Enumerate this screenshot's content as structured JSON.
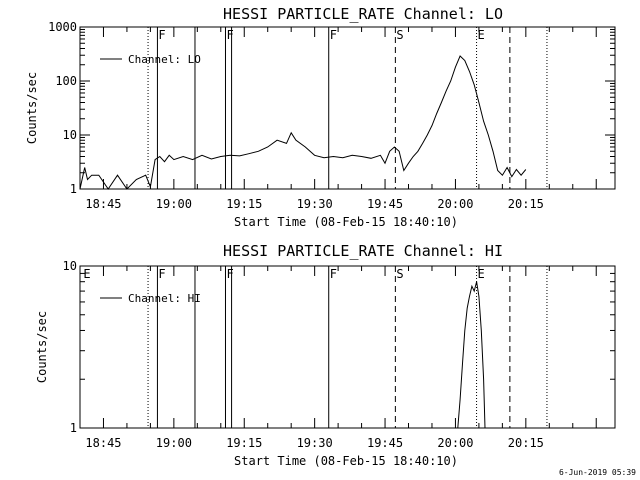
{
  "chart_data": [
    {
      "type": "line",
      "title": "HESSI PARTICLE_RATE Channel: LO",
      "xlabel": "Start Time (08-Feb-15 18:40:10)",
      "ylabel": "Counts/sec",
      "yscale": "log",
      "ylim": [
        1,
        1000
      ],
      "y_tick_labels": [
        "1",
        "10",
        "100",
        "1000"
      ],
      "x_range_min": [
        0,
        114
      ],
      "x_ticks_min": [
        5,
        20,
        35,
        50,
        65,
        80,
        95
      ],
      "x_tick_labels": [
        "18:45",
        "19:00",
        "19:15",
        "19:30",
        "19:45",
        "20:00",
        "20:15"
      ],
      "legend": {
        "label": "Channel: LO",
        "placement": "top-left"
      },
      "series": [
        {
          "name": "Channel: LO",
          "x": [
            0,
            1,
            1.6,
            2.5,
            4,
            6,
            8,
            10,
            12,
            14,
            15,
            16,
            17,
            18,
            19,
            20,
            22,
            24,
            26,
            28,
            30,
            32,
            34,
            36,
            38,
            40,
            42,
            44,
            45,
            46,
            48,
            50,
            52,
            54,
            56,
            58,
            60,
            62,
            64,
            65,
            66,
            67,
            68,
            69,
            70,
            71,
            72,
            73,
            74,
            75,
            76,
            77,
            78,
            79,
            80,
            81,
            82,
            83,
            84,
            85,
            86,
            87,
            88,
            89,
            90,
            91,
            92,
            93,
            94,
            95
          ],
          "y": [
            1,
            2.5,
            1.5,
            1.8,
            1.8,
            1,
            1.8,
            1,
            1.5,
            1.8,
            1.1,
            3.5,
            4,
            3.2,
            4.2,
            3.5,
            4,
            3.5,
            4.2,
            3.6,
            4,
            4.2,
            4.1,
            4.5,
            5,
            6,
            8,
            7,
            11,
            8,
            6,
            4.2,
            3.8,
            4,
            3.8,
            4.2,
            4,
            3.7,
            4.2,
            3,
            5,
            6,
            5,
            2.2,
            3,
            4,
            5,
            7,
            10,
            15,
            25,
            40,
            65,
            100,
            180,
            290,
            240,
            150,
            85,
            40,
            18,
            10,
            5,
            2.2,
            1.8,
            2.5,
            1.7,
            2.3,
            1.8,
            2.3
          ]
        }
      ],
      "annotations": [
        {
          "text": "F",
          "x_min": 16.5,
          "style": "solid"
        },
        {
          "text": "",
          "x_min": 14.5,
          "style": "dotted"
        },
        {
          "text": "",
          "x_min": 24.5,
          "style": "solid"
        },
        {
          "text": "F",
          "x_min": 31,
          "style": "solid"
        },
        {
          "text": "",
          "x_min": 32.3,
          "style": "solid"
        },
        {
          "text": "F",
          "x_min": 53,
          "style": "solid"
        },
        {
          "text": "S",
          "x_min": 67.2,
          "style": "dashed"
        },
        {
          "text": "E",
          "x_min": 84.5,
          "style": "dotted"
        },
        {
          "text": "",
          "x_min": 91.6,
          "style": "dashed"
        },
        {
          "text": "",
          "x_min": 99.5,
          "style": "dotted"
        }
      ]
    },
    {
      "type": "line",
      "title": "HESSI PARTICLE_RATE Channel: HI",
      "xlabel": "Start Time (08-Feb-15 18:40:10)",
      "ylabel": "Counts/sec",
      "yscale": "log",
      "ylim": [
        1,
        10
      ],
      "y_tick_labels": [
        "1",
        "10"
      ],
      "x_range_min": [
        0,
        114
      ],
      "x_ticks_min": [
        5,
        20,
        35,
        50,
        65,
        80,
        95
      ],
      "x_tick_labels": [
        "18:45",
        "19:00",
        "19:15",
        "19:30",
        "19:45",
        "20:00",
        "20:15"
      ],
      "legend": {
        "label": "Channel: HI",
        "placement": "top-left"
      },
      "series": [
        {
          "name": "Channel: HI",
          "x": [
            80.5,
            81,
            81.5,
            82,
            82.5,
            83,
            83.5,
            84,
            84.5,
            85,
            85.5,
            86,
            86.3
          ],
          "y": [
            1,
            1.5,
            2.5,
            4,
            5.5,
            6.5,
            7.5,
            7,
            8,
            6.5,
            4,
            2,
            1
          ]
        }
      ],
      "annotations": [
        {
          "text": "E",
          "x_min": 0.5,
          "style": "none"
        },
        {
          "text": "",
          "x_min": 14.5,
          "style": "dotted"
        },
        {
          "text": "F",
          "x_min": 16.5,
          "style": "solid"
        },
        {
          "text": "",
          "x_min": 24.5,
          "style": "solid"
        },
        {
          "text": "F",
          "x_min": 31,
          "style": "solid"
        },
        {
          "text": "",
          "x_min": 32.3,
          "style": "solid"
        },
        {
          "text": "F",
          "x_min": 53,
          "style": "solid"
        },
        {
          "text": "S",
          "x_min": 67.2,
          "style": "dashed"
        },
        {
          "text": "E",
          "x_min": 84.5,
          "style": "dotted"
        },
        {
          "text": "",
          "x_min": 91.6,
          "style": "dashed"
        },
        {
          "text": "",
          "x_min": 99.5,
          "style": "dotted"
        }
      ]
    }
  ],
  "footer": {
    "date_stamp": "6-Jun-2019 05:39"
  }
}
